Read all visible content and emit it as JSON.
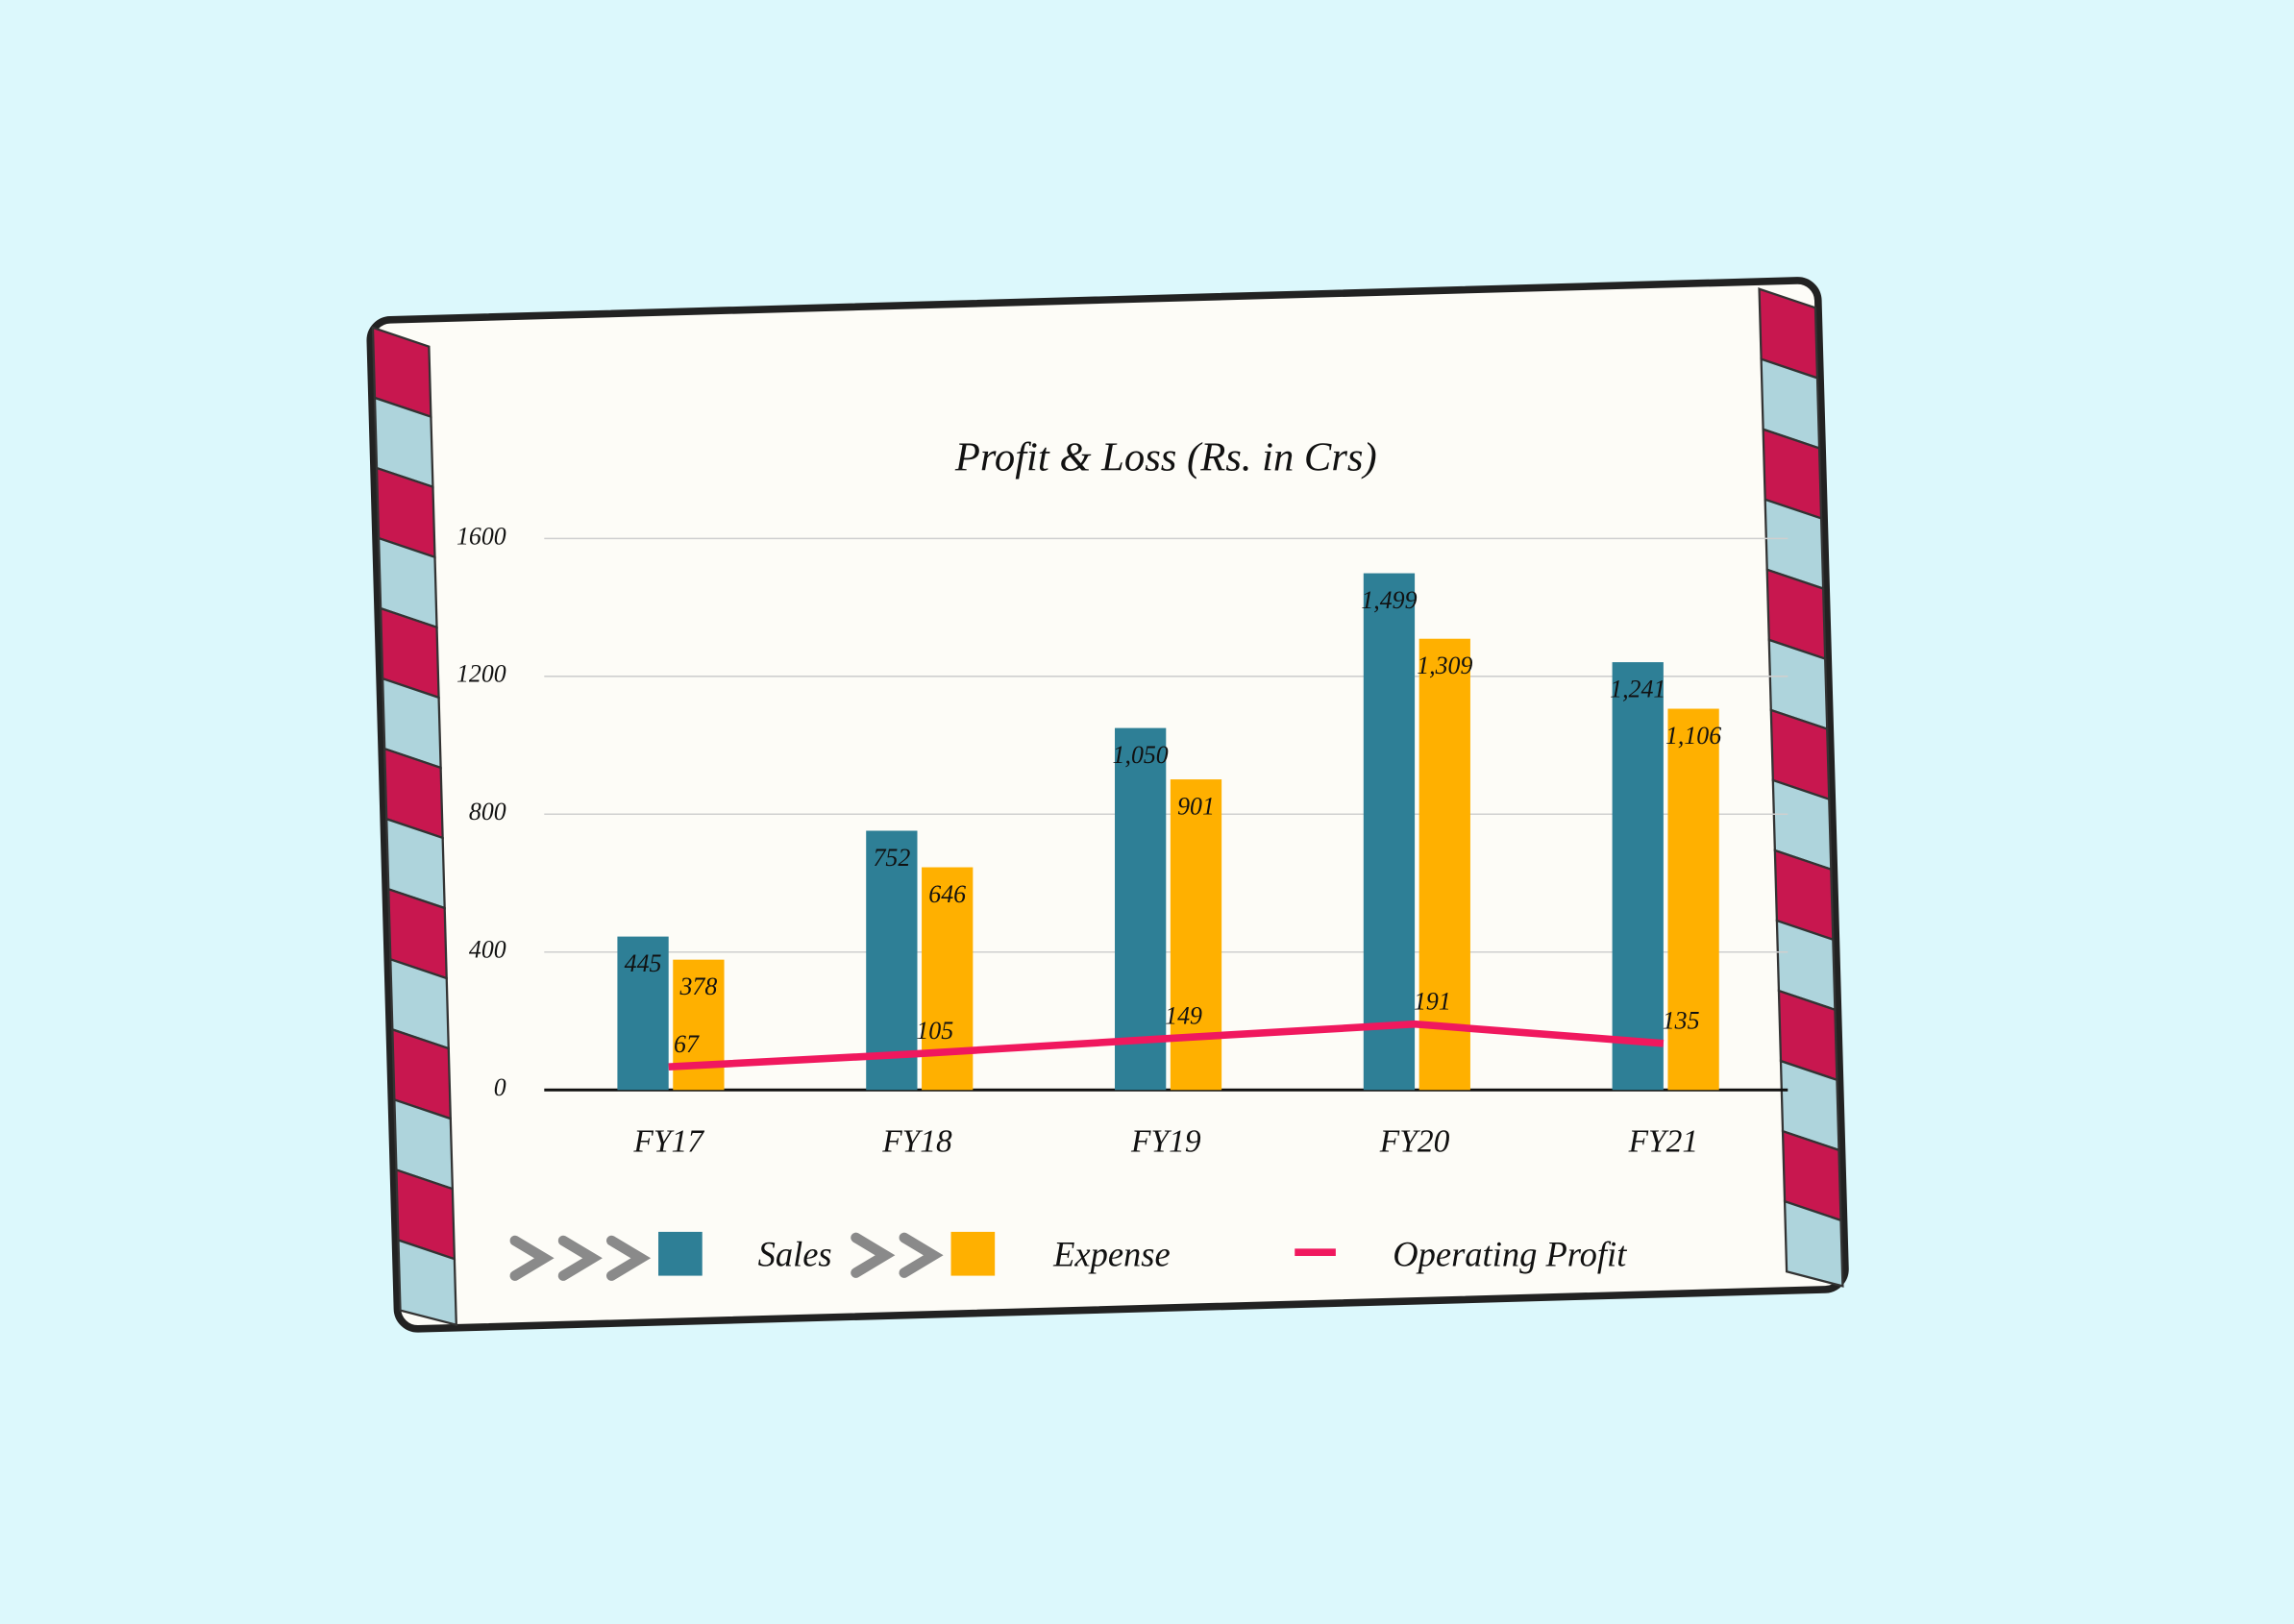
{
  "chart_data": {
    "type": "bar",
    "title": "Profit & Loss (Rs. in Crs)",
    "categories": [
      "FY17",
      "FY18",
      "FY19",
      "FY20",
      "FY21"
    ],
    "series": [
      {
        "name": "Sales",
        "color": "#2e7f96",
        "values": [
          445,
          752,
          1050,
          1499,
          1241
        ],
        "value_labels": [
          "445",
          "752",
          "1,050",
          "1,499",
          "1,241"
        ]
      },
      {
        "name": "Expense",
        "color": "#ffb000",
        "values": [
          378,
          646,
          901,
          1309,
          1106
        ],
        "value_labels": [
          "378",
          "646",
          "901",
          "1,309",
          "1,106"
        ]
      },
      {
        "name": "Operating Profit",
        "color": "#f0185e",
        "type": "line",
        "values": [
          67,
          105,
          149,
          191,
          135
        ]
      }
    ],
    "ylim": [
      0,
      1600
    ],
    "yticks": [
      0,
      400,
      800,
      1200,
      1600
    ],
    "grid": true,
    "legend": "bottom"
  }
}
